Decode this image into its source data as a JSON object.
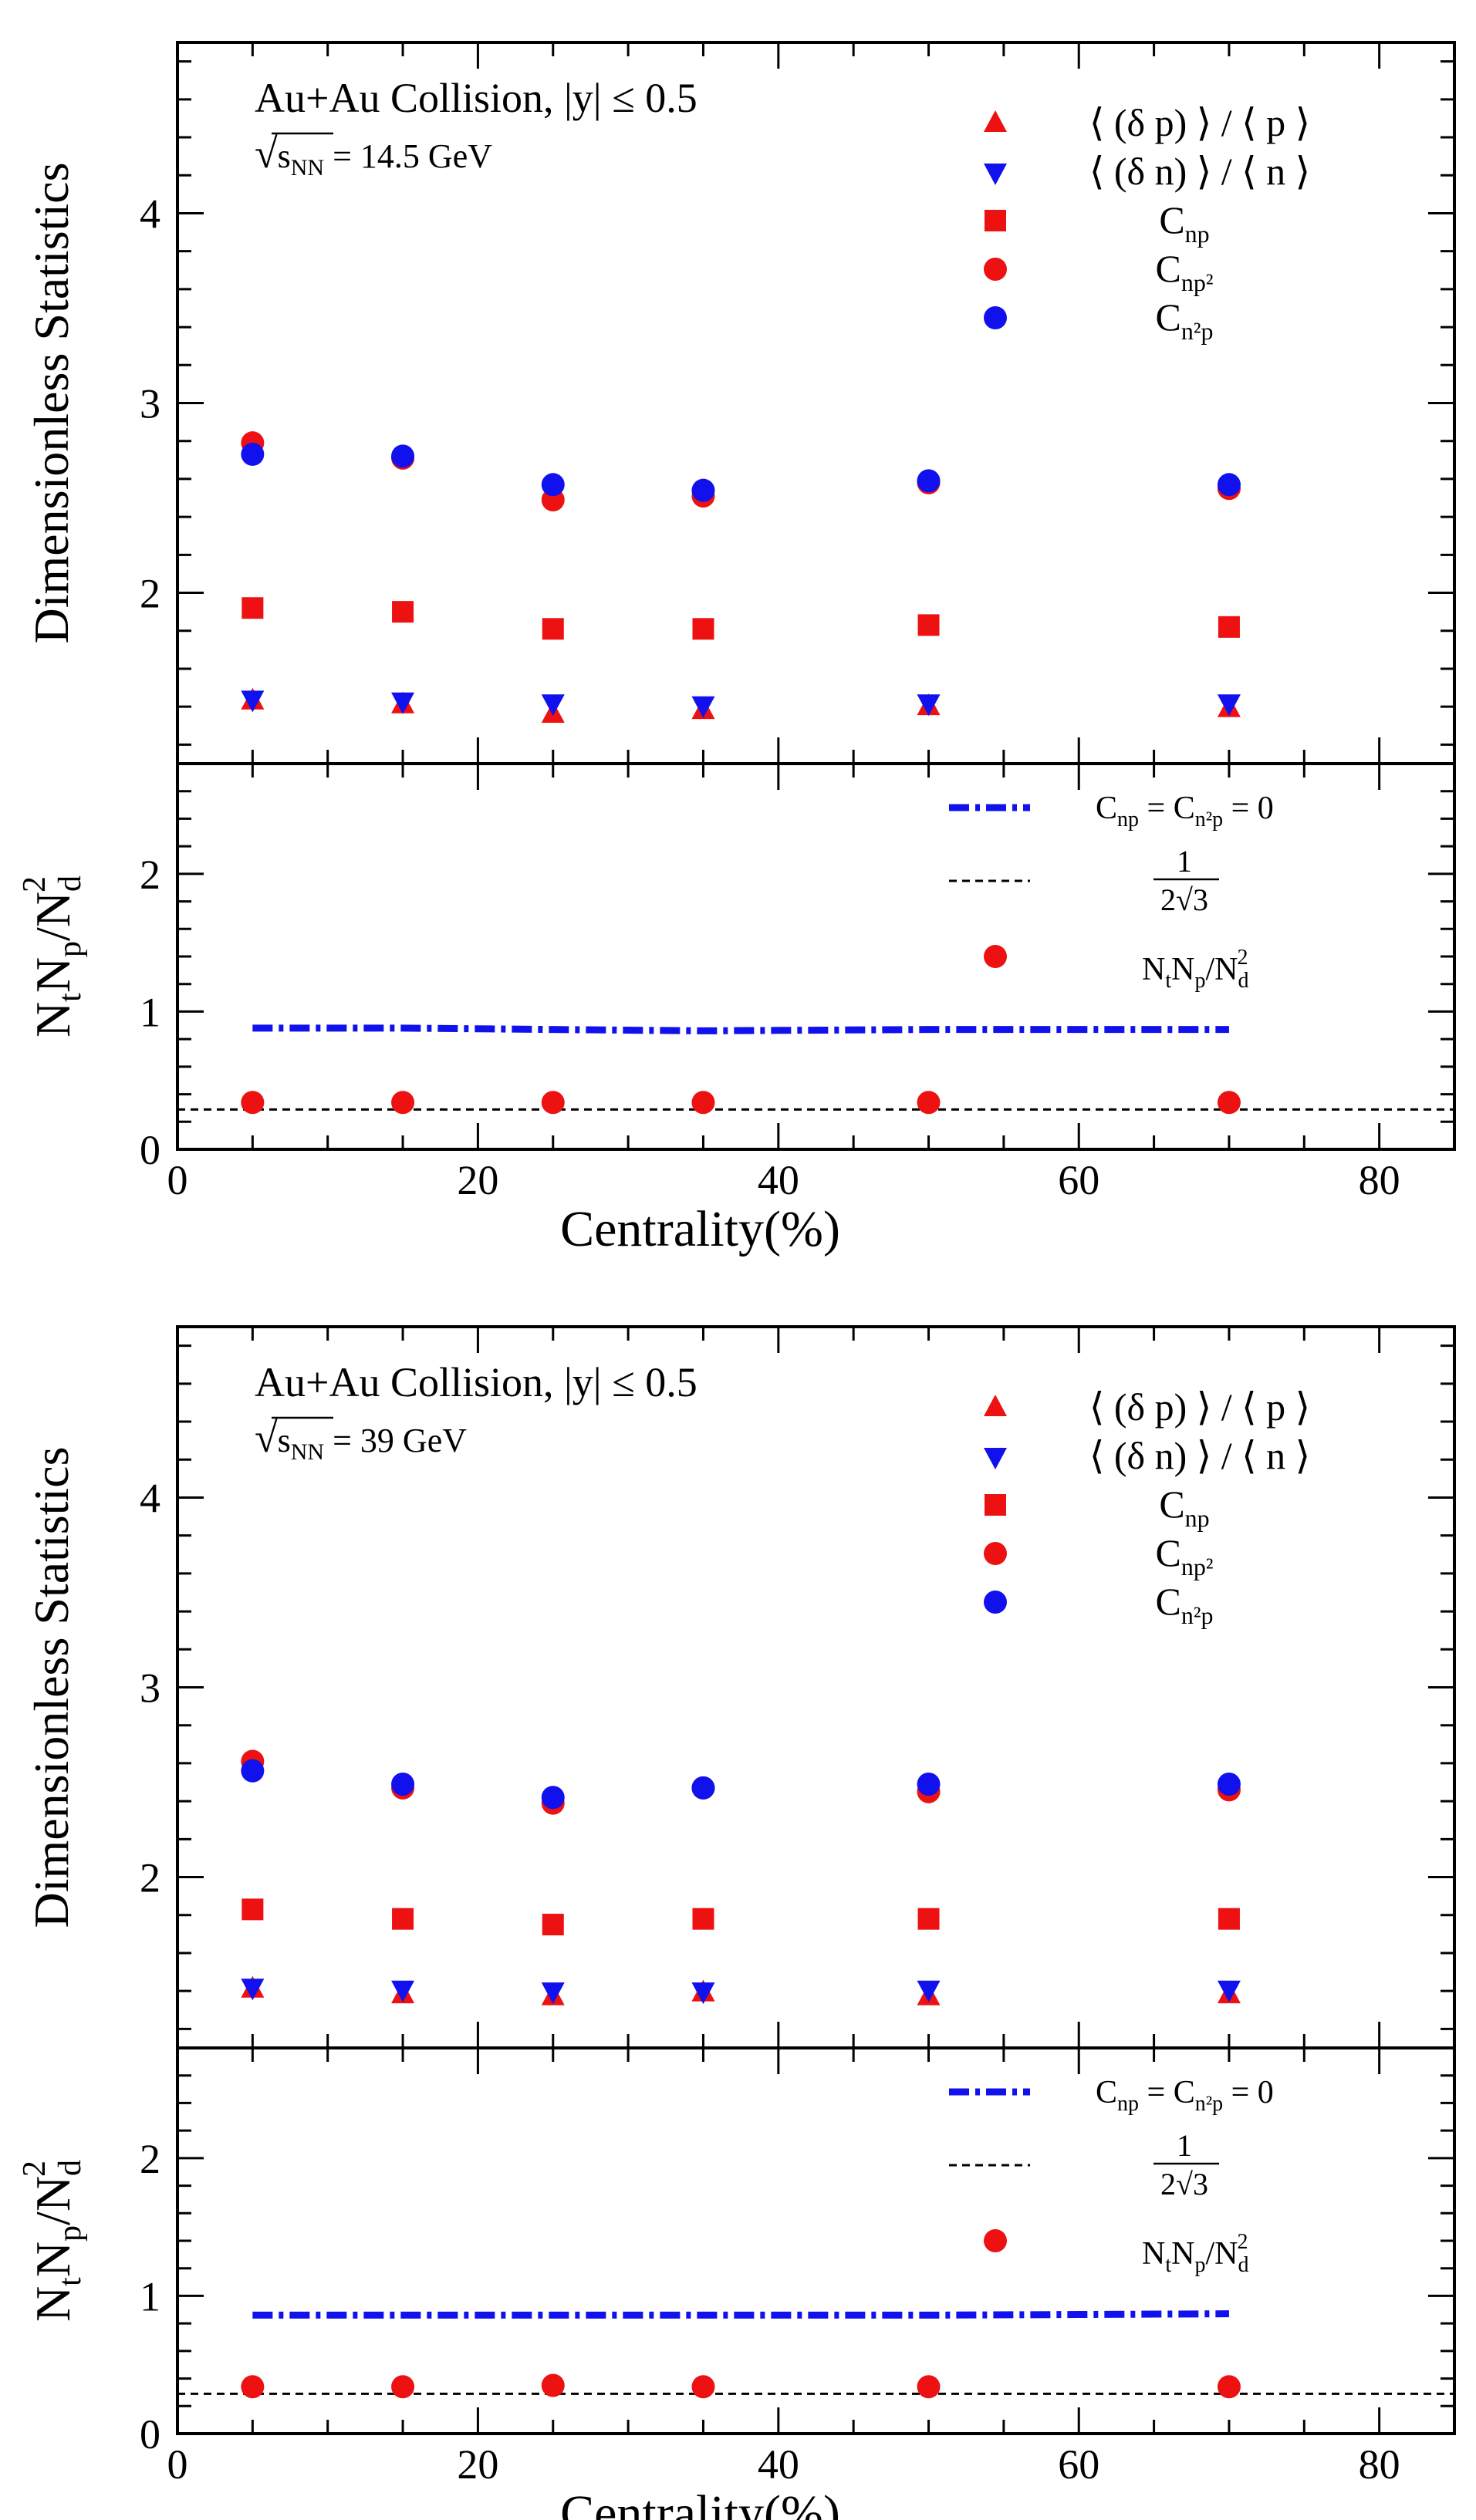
{
  "colors": {
    "red": "#ee1111",
    "blue": "#1111ee",
    "black": "#000000"
  },
  "chart_data": [
    {
      "type": "scatter",
      "panel": "upper",
      "energy_label": "14.5 GeV",
      "annotation": {
        "collision": "Au+Au Collision, |y| ≤ 0.5",
        "energy_prefix": "s",
        "energy_sub": "NN",
        "energy_value": "= 14.5 GeV"
      },
      "ylabel": "Dimensionless Statistics",
      "xlim": [
        0,
        85
      ],
      "ylim": [
        1.1,
        4.9
      ],
      "yticks": [
        2,
        3,
        4
      ],
      "x": [
        5,
        15,
        25,
        35,
        50,
        70
      ],
      "series": [
        {
          "name": "⟨ (δ p) ⟩ / ⟨ p ⟩",
          "marker": "triangle-up",
          "color": "red",
          "values": [
            1.43,
            1.41,
            1.36,
            1.38,
            1.4,
            1.39
          ]
        },
        {
          "name": "⟨ (δ n) ⟩ / ⟨ n ⟩",
          "marker": "triangle-down",
          "color": "blue",
          "values": [
            1.44,
            1.43,
            1.42,
            1.41,
            1.42,
            1.42
          ]
        },
        {
          "name": "C",
          "name_sub": "np",
          "marker": "square",
          "color": "red",
          "values": [
            1.92,
            1.9,
            1.81,
            1.81,
            1.83,
            1.82
          ]
        },
        {
          "name": "C",
          "name_sub": "np²",
          "marker": "circle",
          "color": "red",
          "values": [
            2.79,
            2.71,
            2.49,
            2.51,
            2.58,
            2.55
          ]
        },
        {
          "name": "C",
          "name_sub": "n²p",
          "marker": "circle",
          "color": "blue",
          "values": [
            2.73,
            2.72,
            2.57,
            2.54,
            2.59,
            2.57
          ]
        }
      ]
    },
    {
      "type": "scatter",
      "panel": "lower",
      "energy_label": "14.5 GeV",
      "ylabel": "N",
      "ylabel_parts": [
        "t",
        "N",
        "p",
        "/N",
        "d",
        "2"
      ],
      "xlabel": "Centrality(%)",
      "xlim": [
        0,
        85
      ],
      "ylim": [
        0,
        2.8
      ],
      "yticks": [
        0,
        1,
        2
      ],
      "xticks": [
        0,
        20,
        40,
        60,
        80
      ],
      "x": [
        5,
        15,
        25,
        35,
        50,
        70
      ],
      "reference_lines": [
        {
          "name": "C",
          "name_sub": "np",
          "name_mid": " = C",
          "name_sub2": "n²p",
          "name_end": " = 0",
          "style": "dash-dot",
          "color": "blue",
          "x_range": [
            5,
            70
          ],
          "y_values": [
            0.88,
            0.88,
            0.87,
            0.86,
            0.87,
            0.87
          ]
        },
        {
          "name": "1",
          "denominator": "2√3",
          "style": "dashed",
          "color": "black",
          "x_range": [
            0,
            85
          ],
          "value": 0.289
        }
      ],
      "series": [
        {
          "name": "N",
          "name_parts": [
            "t",
            "N",
            "p",
            "/N",
            "d",
            "2"
          ],
          "marker": "circle",
          "color": "red",
          "values": [
            0.34,
            0.34,
            0.34,
            0.34,
            0.34,
            0.34
          ]
        }
      ]
    },
    {
      "type": "scatter",
      "panel": "upper",
      "energy_label": "39 GeV",
      "annotation": {
        "collision": "Au+Au Collision, |y| ≤ 0.5",
        "energy_prefix": "s",
        "energy_sub": "NN",
        "energy_value": "= 39 GeV"
      },
      "ylabel": "Dimensionless Statistics",
      "xlim": [
        0,
        85
      ],
      "ylim": [
        1.1,
        4.9
      ],
      "yticks": [
        2,
        3,
        4
      ],
      "x": [
        5,
        15,
        25,
        35,
        50,
        70
      ],
      "series": [
        {
          "name": "⟨ (δ p) ⟩ / ⟨ p ⟩",
          "marker": "triangle-up",
          "color": "red",
          "values": [
            1.41,
            1.38,
            1.37,
            1.39,
            1.37,
            1.38
          ]
        },
        {
          "name": "⟨ (δ n) ⟩ / ⟨ n ⟩",
          "marker": "triangle-down",
          "color": "blue",
          "values": [
            1.42,
            1.41,
            1.4,
            1.4,
            1.41,
            1.41
          ]
        },
        {
          "name": "C",
          "name_sub": "np",
          "marker": "square",
          "color": "red",
          "values": [
            1.83,
            1.78,
            1.75,
            1.78,
            1.78,
            1.78
          ]
        },
        {
          "name": "C",
          "name_sub": "np²",
          "marker": "circle",
          "color": "red",
          "values": [
            2.61,
            2.47,
            2.39,
            2.47,
            2.45,
            2.46
          ]
        },
        {
          "name": "C",
          "name_sub": "n²p",
          "marker": "circle",
          "color": "blue",
          "values": [
            2.56,
            2.49,
            2.42,
            2.47,
            2.49,
            2.49
          ]
        }
      ]
    },
    {
      "type": "scatter",
      "panel": "lower",
      "energy_label": "39 GeV",
      "ylabel": "N",
      "ylabel_parts": [
        "t",
        "N",
        "p",
        "/N",
        "d",
        "2"
      ],
      "xlabel": "Centrality(%)",
      "xlim": [
        0,
        85
      ],
      "ylim": [
        0,
        2.8
      ],
      "yticks": [
        0,
        1,
        2
      ],
      "xticks": [
        0,
        20,
        40,
        60,
        80
      ],
      "x": [
        5,
        15,
        25,
        35,
        50,
        70
      ],
      "reference_lines": [
        {
          "name": "C",
          "name_sub": "np",
          "name_mid": " = C",
          "name_sub2": "n²p",
          "name_end": " = 0",
          "style": "dash-dot",
          "color": "blue",
          "x_range": [
            5,
            70
          ],
          "y_values": [
            0.86,
            0.86,
            0.86,
            0.86,
            0.86,
            0.87
          ]
        },
        {
          "name": "1",
          "denominator": "2√3",
          "style": "dashed",
          "color": "black",
          "x_range": [
            0,
            85
          ],
          "value": 0.289
        }
      ],
      "series": [
        {
          "name": "N",
          "name_parts": [
            "t",
            "N",
            "p",
            "/N",
            "d",
            "2"
          ],
          "marker": "circle",
          "color": "red",
          "values": [
            0.34,
            0.34,
            0.35,
            0.34,
            0.34,
            0.34
          ]
        }
      ]
    }
  ]
}
